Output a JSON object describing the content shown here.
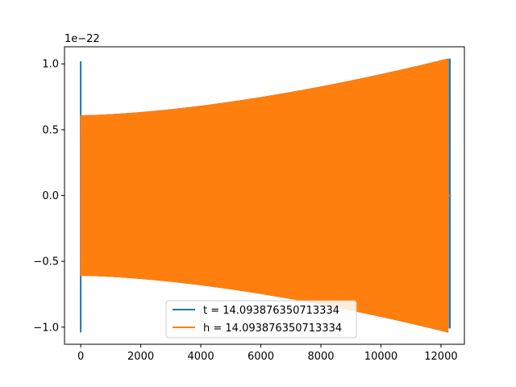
{
  "chart_data": {
    "type": "line",
    "title": "",
    "xlabel": "",
    "ylabel": "",
    "y_offset_label": "1e−22",
    "xlim": [
      -540,
      12780
    ],
    "ylim": [
      -1.13,
      1.13
    ],
    "x_ticks": [
      0,
      2000,
      4000,
      6000,
      8000,
      10000,
      12000
    ],
    "x_tick_labels": [
      "0",
      "2000",
      "4000",
      "6000",
      "8000",
      "10000",
      "12000"
    ],
    "y_ticks": [
      -1.0,
      -0.5,
      0.0,
      0.5,
      1.0
    ],
    "y_tick_labels": [
      "−1.0",
      "−0.5",
      "0.0",
      "0.5",
      "1.0"
    ],
    "grid": false,
    "legend_position": "lower center",
    "series": [
      {
        "name": "t = 14.093876350713334",
        "color": "#1f77b4",
        "description_values": {
          "x_start": 0,
          "x_end": 12230,
          "start_spike_amplitude": 1.02,
          "envelope_start": 0.61,
          "envelope_end": 1.04,
          "end_spike_amplitude": 1.04
        }
      },
      {
        "name": "h = 14.093876350713334",
        "color": "#ff7f0e",
        "description_values": {
          "x_start": 0,
          "x_end": 12230,
          "envelope_start": 0.61,
          "envelope_end": 1.04
        }
      }
    ]
  }
}
